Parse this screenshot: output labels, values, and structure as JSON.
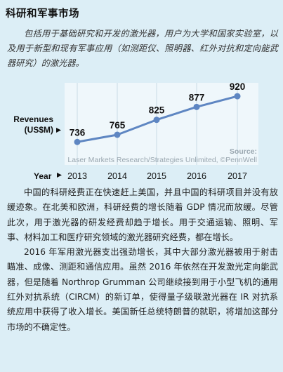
{
  "section": {
    "title": "科研和军事市场",
    "intro": "包括用于基础研究和开发的激光器，用户为大学和国家实验室，以及用于新型和现有军事应用（如测距仪、照明器、红外对抗和定向能武器研究）的激光器。"
  },
  "chart_data": {
    "type": "line",
    "ylabel_line1": "Revenues",
    "ylabel_line2": "(US$M)",
    "xlabel": "Year",
    "categories": [
      "2013",
      "2014",
      "2015",
      "2016",
      "2017"
    ],
    "values": [
      736,
      765,
      825,
      877,
      920
    ],
    "source_label": "Source:",
    "source_text": "Laser Markets Research/Strategies Unlimited, ©PennWell",
    "grid": "vertical",
    "series_color": "#5e86c2"
  },
  "body": {
    "paragraphs": [
      "中国的科研经费正在快速赶上美国，并且中国的科研项目并没有放缓迹象。在北美和欧洲，科研经费的增长随着 GDP 情况而放缓。尽管此次，用于激光器的研发经费却趋于增长。用于交通运输、照明、军事、材料加工和医疗研究领域的激光器研究经费，都在增长。",
      "2016 年军用激光器支出强劲增长，其中大部分激光器被用于射击瞄准、成像、测距和通信应用。虽然 2016 年依然在开发激光定向能武器，但是随着 Northrop Grumman 公司继续接到用于小型飞机的通用红外对抗系统（CIRCM）的新订单，使得量子级联激光器在 IR 对抗系统应用中获得了收入增长。美国新任总统特朗普的就职，将增加这部分市场的不确定性。"
    ]
  }
}
